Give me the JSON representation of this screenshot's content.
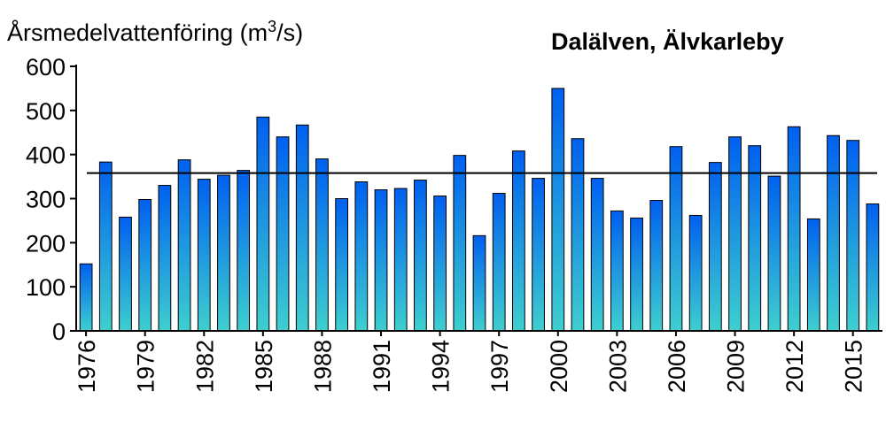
{
  "chart_data": {
    "type": "bar",
    "title": "Dalälven, Älvkarleby",
    "ylabel": {
      "main": "Årsmedelvattenföring  (m",
      "sup": "3",
      "tail": "/s)"
    },
    "xlabel": "",
    "ylim": [
      0,
      600
    ],
    "yticks": [
      "0",
      "100",
      "200",
      "300",
      "400",
      "500",
      "600"
    ],
    "categories": [
      "1976",
      "1977",
      "1978",
      "1979",
      "1980",
      "1981",
      "1982",
      "1983",
      "1984",
      "1985",
      "1986",
      "1987",
      "1988",
      "1989",
      "1990",
      "1991",
      "1992",
      "1993",
      "1994",
      "1995",
      "1996",
      "1997",
      "1998",
      "1999",
      "2000",
      "2001",
      "2002",
      "2003",
      "2004",
      "2005",
      "2006",
      "2007",
      "2008",
      "2009",
      "2010",
      "2011",
      "2012",
      "2013",
      "2014",
      "2015",
      "2016"
    ],
    "xtick_labels": [
      "1976",
      "1979",
      "1982",
      "1985",
      "1988",
      "1991",
      "1994",
      "1997",
      "2000",
      "2003",
      "2006",
      "2009",
      "2012",
      "2015"
    ],
    "values": [
      152,
      383,
      258,
      298,
      330,
      388,
      344,
      353,
      364,
      485,
      440,
      467,
      390,
      300,
      338,
      320,
      323,
      342,
      306,
      398,
      216,
      312,
      408,
      346,
      550,
      436,
      346,
      272,
      256,
      296,
      418,
      262,
      382,
      440,
      420,
      351,
      463,
      254,
      443,
      432,
      288
    ],
    "reference_line": 358,
    "colors": {
      "bar_top": "#0060F0",
      "bar_bottom": "#3ECFCF",
      "bar_stroke": "#000000",
      "axis": "#000000",
      "reference_line": "#000000"
    }
  }
}
